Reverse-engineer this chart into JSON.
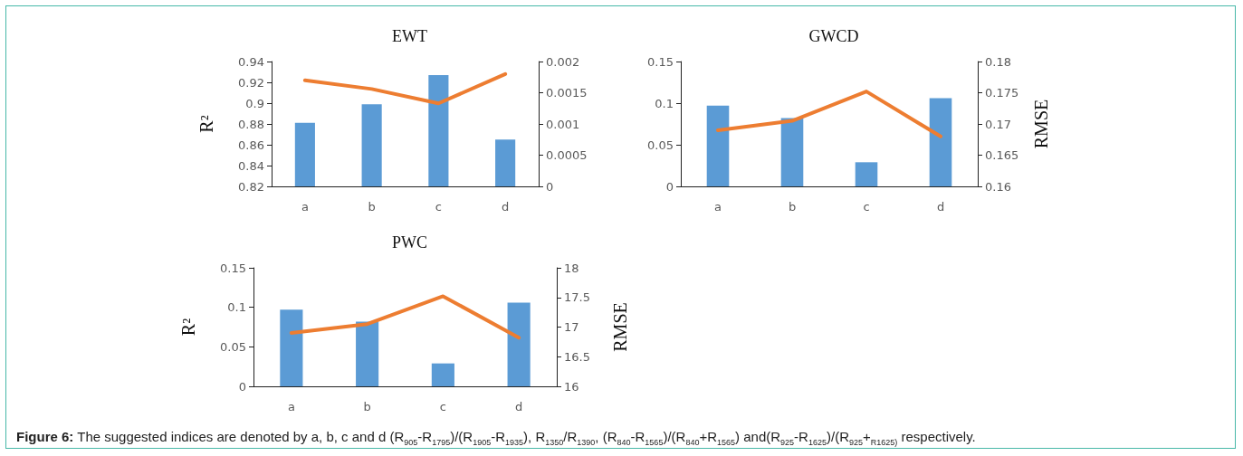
{
  "chart_data": [
    {
      "type": "bar",
      "title": "EWT",
      "ylabel": "R²",
      "categories": [
        "a",
        "b",
        "c",
        "d"
      ],
      "ylim": [
        0.82,
        0.94
      ],
      "yticks": [
        0.82,
        0.84,
        0.86,
        0.88,
        0.9,
        0.92,
        0.94
      ],
      "y2lim": [
        0,
        0.002
      ],
      "y2ticks": [
        0,
        0.0005,
        0.001,
        0.0015,
        0.002
      ],
      "grid": false,
      "series": [
        {
          "color": "#5b9bd5",
          "values": [
            0.881,
            0.899,
            0.927,
            0.865
          ]
        },
        {
          "type": "line",
          "axis": "y2",
          "color": "#ed7d31",
          "marker": "none",
          "line_style": "solid",
          "values": [
            0.0017,
            0.00156,
            0.00133,
            0.0018
          ]
        }
      ]
    },
    {
      "type": "bar",
      "title": "GWCD",
      "y2label": "RMSE",
      "categories": [
        "a",
        "b",
        "c",
        "d"
      ],
      "ylim": [
        0,
        0.15
      ],
      "yticks": [
        0,
        0.05,
        0.1,
        0.15
      ],
      "y2lim": [
        0.16,
        0.18
      ],
      "y2ticks": [
        0.16,
        0.165,
        0.17,
        0.175,
        0.18
      ],
      "grid": false,
      "series": [
        {
          "color": "#5b9bd5",
          "values": [
            0.097,
            0.082,
            0.029,
            0.106
          ]
        },
        {
          "type": "line",
          "axis": "y2",
          "color": "#ed7d31",
          "marker": "none",
          "line_style": "solid",
          "values": [
            0.169,
            0.1705,
            0.1752,
            0.168
          ]
        }
      ]
    },
    {
      "type": "bar",
      "title": "PWC",
      "ylabel": "R²",
      "y2label": "RMSE",
      "categories": [
        "a",
        "b",
        "c",
        "d"
      ],
      "ylim": [
        0,
        0.15
      ],
      "yticks": [
        0,
        0.05,
        0.1,
        0.15
      ],
      "y2lim": [
        16,
        18
      ],
      "y2ticks": [
        16,
        16.5,
        17,
        17.5,
        18
      ],
      "grid": false,
      "annotations": [
        "Figure 6: The suggested indices are denoted by a, b, c and d (R$_{905}$-R$_{1795}$)/(R$_{1905}$-R$_{1935}$), R$_{1350}$/R$_{1390}$, (R$_{840}$-R$_{1565}$)/(R$_{840}$+R$_{1565}$) and(R$_{925}$-R$_{1625}$)/(R$_{925}$+$_{R1625)}$ respectively."
      ],
      "series": [
        {
          "color": "#5b9bd5",
          "values": [
            0.097,
            0.082,
            0.029,
            0.106
          ]
        },
        {
          "type": "line",
          "axis": "y2",
          "color": "#ed7d31",
          "marker": "none",
          "line_style": "solid",
          "values": [
            16.9,
            17.05,
            17.52,
            16.82
          ]
        }
      ]
    }
  ]
}
